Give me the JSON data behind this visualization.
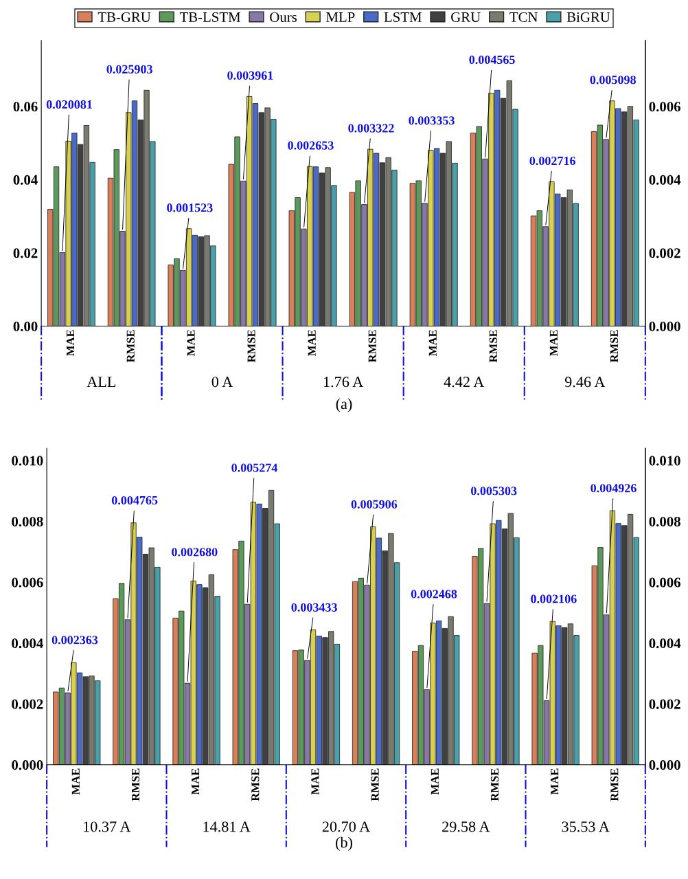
{
  "chart_data": [
    {
      "type": "bar",
      "categories": [
        "MAE",
        "RMSE"
      ],
      "ylim": [
        0,
        0.078
      ],
      "yticks": [
        {
          "value": 0,
          "label": "0.00"
        },
        {
          "value": 0.02,
          "label": "0.02"
        },
        {
          "value": 0.04,
          "label": "0.04"
        },
        {
          "value": 0.06,
          "label": "0.06"
        }
      ],
      "legend": "top",
      "annotations": [
        "ALL"
      ],
      "series": [
        {
          "name": "TB-GRU",
          "color": "#d9805a",
          "values": [
            0.0319,
            0.0404
          ]
        },
        {
          "name": "TB-LSTM",
          "color": "#5c9a5c",
          "values": [
            0.0435,
            0.0482
          ]
        },
        {
          "name": "Ours",
          "color": "#8878a8",
          "values": [
            0.020081,
            0.025903
          ],
          "value_labels": [
            "0.020081",
            "0.025903"
          ]
        },
        {
          "name": "MLP",
          "color": "#d8d050",
          "values": [
            0.0505,
            0.0583
          ]
        },
        {
          "name": "LSTM",
          "color": "#4a6ac8",
          "values": [
            0.0527,
            0.0615
          ]
        },
        {
          "name": "GRU",
          "color": "#404040",
          "values": [
            0.0496,
            0.0563
          ]
        },
        {
          "name": "TCN",
          "color": "#7a7a70",
          "values": [
            0.0548,
            0.0644
          ]
        },
        {
          "name": "BiGRU",
          "color": "#4aa0a8",
          "values": [
            0.0447,
            0.0504
          ]
        }
      ]
    },
    {
      "type": "bar",
      "categories": [
        "MAE",
        "RMSE",
        "MAE",
        "RMSE",
        "MAE",
        "RMSE",
        "MAE",
        "RMSE"
      ],
      "y2lim": [
        0,
        0.0078
      ],
      "y2ticks": [
        {
          "value": 0,
          "label": "0.000"
        },
        {
          "value": 0.002,
          "label": "0.002"
        },
        {
          "value": 0.004,
          "label": "0.004"
        },
        {
          "value": 0.006,
          "label": "0.006"
        }
      ],
      "annotations": [
        "0 A",
        "1.76 A",
        "4.42 A",
        "9.46 A",
        "(a)"
      ],
      "series": [
        {
          "color": "#d9805a",
          "axis": "y2",
          "values": [
            0.00167,
            0.00442,
            0.00315,
            0.00365,
            0.0039,
            0.00527,
            0.00301,
            0.00531
          ]
        },
        {
          "color": "#5c9a5c",
          "axis": "y2",
          "values": [
            0.00184,
            0.00517,
            0.00351,
            0.00397,
            0.00397,
            0.00545,
            0.00315,
            0.00549
          ]
        },
        {
          "color": "#8878a8",
          "axis": "y2",
          "values": [
            0.001523,
            0.003961,
            0.002653,
            0.003322,
            0.003353,
            0.004565,
            0.002716,
            0.005098
          ],
          "value_labels": [
            "0.001523",
            "0.003961",
            "0.002653",
            "0.003322",
            "0.003353",
            "0.004565",
            "0.002716",
            "0.005098"
          ]
        },
        {
          "color": "#d8d050",
          "axis": "y2",
          "values": [
            0.00266,
            0.00627,
            0.00436,
            0.00483,
            0.0048,
            0.00636,
            0.00394,
            0.00615
          ]
        },
        {
          "color": "#4a6ac8",
          "axis": "y2",
          "values": [
            0.00248,
            0.00608,
            0.00435,
            0.00472,
            0.00485,
            0.00644,
            0.00361,
            0.00594
          ]
        },
        {
          "color": "#404040",
          "axis": "y2",
          "values": [
            0.00244,
            0.00583,
            0.00418,
            0.00446,
            0.00472,
            0.00622,
            0.00351,
            0.00585
          ]
        },
        {
          "color": "#7a7a70",
          "axis": "y2",
          "values": [
            0.00247,
            0.00596,
            0.00433,
            0.0046,
            0.00504,
            0.0067,
            0.00372,
            0.006
          ]
        },
        {
          "color": "#4aa0a8",
          "axis": "y2",
          "values": [
            0.00219,
            0.00565,
            0.00384,
            0.00426,
            0.00445,
            0.00592,
            0.00335,
            0.00563
          ]
        }
      ]
    },
    {
      "type": "bar",
      "categories": [
        "MAE",
        "RMSE",
        "MAE",
        "RMSE",
        "MAE",
        "RMSE",
        "MAE",
        "RMSE",
        "MAE",
        "RMSE"
      ],
      "ylim": [
        0,
        0.0104
      ],
      "yticks": [
        {
          "value": 0,
          "label": "0.000"
        },
        {
          "value": 0.002,
          "label": "0.002"
        },
        {
          "value": 0.004,
          "label": "0.004"
        },
        {
          "value": 0.006,
          "label": "0.006"
        },
        {
          "value": 0.008,
          "label": "0.008"
        },
        {
          "value": 0.01,
          "label": "0.010"
        }
      ],
      "y2lim": [
        0,
        0.0104
      ],
      "y2ticks": [
        {
          "value": 0,
          "label": "0.000"
        },
        {
          "value": 0.002,
          "label": "0.002"
        },
        {
          "value": 0.004,
          "label": "0.004"
        },
        {
          "value": 0.006,
          "label": "0.006"
        },
        {
          "value": 0.008,
          "label": "0.008"
        },
        {
          "value": 0.01,
          "label": "0.010"
        }
      ],
      "annotations": [
        "10.37 A",
        "14.81 A",
        "20.70 A",
        "29.58 A",
        "35.53 A",
        "(b)"
      ],
      "series": [
        {
          "color": "#d9805a",
          "values": [
            0.00239,
            0.00546,
            0.00482,
            0.00707,
            0.00375,
            0.00602,
            0.00373,
            0.00685,
            0.00367,
            0.00654
          ]
        },
        {
          "color": "#5c9a5c",
          "values": [
            0.00252,
            0.00596,
            0.00505,
            0.00735,
            0.00377,
            0.00613,
            0.00392,
            0.00711,
            0.00392,
            0.00714
          ]
        },
        {
          "color": "#8878a8",
          "values": [
            0.002363,
            0.004765,
            0.00268,
            0.005274,
            0.003433,
            0.005906,
            0.002468,
            0.005303,
            0.002106,
            0.004926
          ],
          "value_labels": [
            "0.002363",
            "0.004765",
            "0.002680",
            "0.005274",
            "0.003433",
            "0.005906",
            "0.002468",
            "0.005303",
            "0.002106",
            "0.004926"
          ]
        },
        {
          "color": "#d8d050",
          "values": [
            0.00336,
            0.00795,
            0.00604,
            0.00863,
            0.00443,
            0.00782,
            0.00466,
            0.00792,
            0.00471,
            0.00835
          ]
        },
        {
          "color": "#4a6ac8",
          "values": [
            0.00302,
            0.00748,
            0.00592,
            0.00857,
            0.00423,
            0.00745,
            0.00473,
            0.00803,
            0.00457,
            0.00793
          ]
        },
        {
          "color": "#404040",
          "values": [
            0.00289,
            0.00692,
            0.00582,
            0.00843,
            0.00418,
            0.00703,
            0.00448,
            0.00775,
            0.00451,
            0.00786
          ]
        },
        {
          "color": "#7a7a70",
          "values": [
            0.00292,
            0.00713,
            0.00625,
            0.00902,
            0.00438,
            0.0076,
            0.00487,
            0.00826,
            0.00463,
            0.00823
          ]
        },
        {
          "color": "#4aa0a8",
          "values": [
            0.00276,
            0.00649,
            0.00554,
            0.00792,
            0.00396,
            0.00664,
            0.00425,
            0.00746,
            0.00425,
            0.00747
          ]
        }
      ]
    }
  ]
}
